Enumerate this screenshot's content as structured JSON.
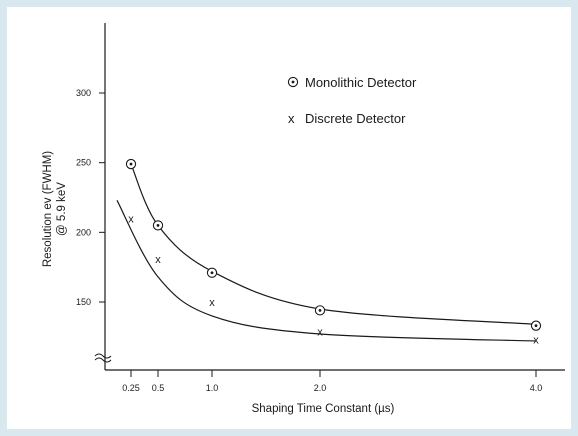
{
  "chart_data": {
    "type": "line",
    "title": "",
    "xlabel": "Shaping Time Constant (µs)",
    "ylabel_lines": [
      "Resolution ev (FWHM)",
      "@ 5.9 keV"
    ],
    "x_ticks": [
      {
        "value": 0.25,
        "label": "0.25"
      },
      {
        "value": 0.5,
        "label": "0.5"
      },
      {
        "value": 1.0,
        "label": "1.0"
      },
      {
        "value": 2.0,
        "label": "2.0"
      },
      {
        "value": 4.0,
        "label": "4.0"
      }
    ],
    "y_ticks": [
      {
        "value": 150,
        "label": "150"
      },
      {
        "value": 200,
        "label": "200"
      },
      {
        "value": 250,
        "label": "250"
      },
      {
        "value": 300,
        "label": "300"
      }
    ],
    "ylim": [
      100,
      350
    ],
    "y_axis_break": true,
    "grid": false,
    "legend_position": "top-right",
    "series": [
      {
        "name": "Monolithic Detector",
        "marker": "circle-dot",
        "x": [
          0.25,
          0.5,
          1.0,
          2.0,
          4.0
        ],
        "y": [
          249,
          205,
          171,
          144,
          133
        ],
        "curve_y": [
          249,
          205,
          172,
          145,
          134
        ]
      },
      {
        "name": "Discrete Detector",
        "marker": "x",
        "x": [
          0.25,
          0.5,
          1.0,
          2.0,
          4.0
        ],
        "y": [
          210,
          181,
          150,
          129,
          123
        ],
        "curve_x": [
          0.2,
          0.5,
          1.0,
          2.0,
          4.0
        ],
        "curve_y": [
          223,
          168,
          140,
          127,
          122
        ]
      }
    ]
  },
  "colors": {
    "frame_bg": "#d9e8ee",
    "plot_bg": "#ffffff",
    "ink": "#1a1a1a"
  }
}
